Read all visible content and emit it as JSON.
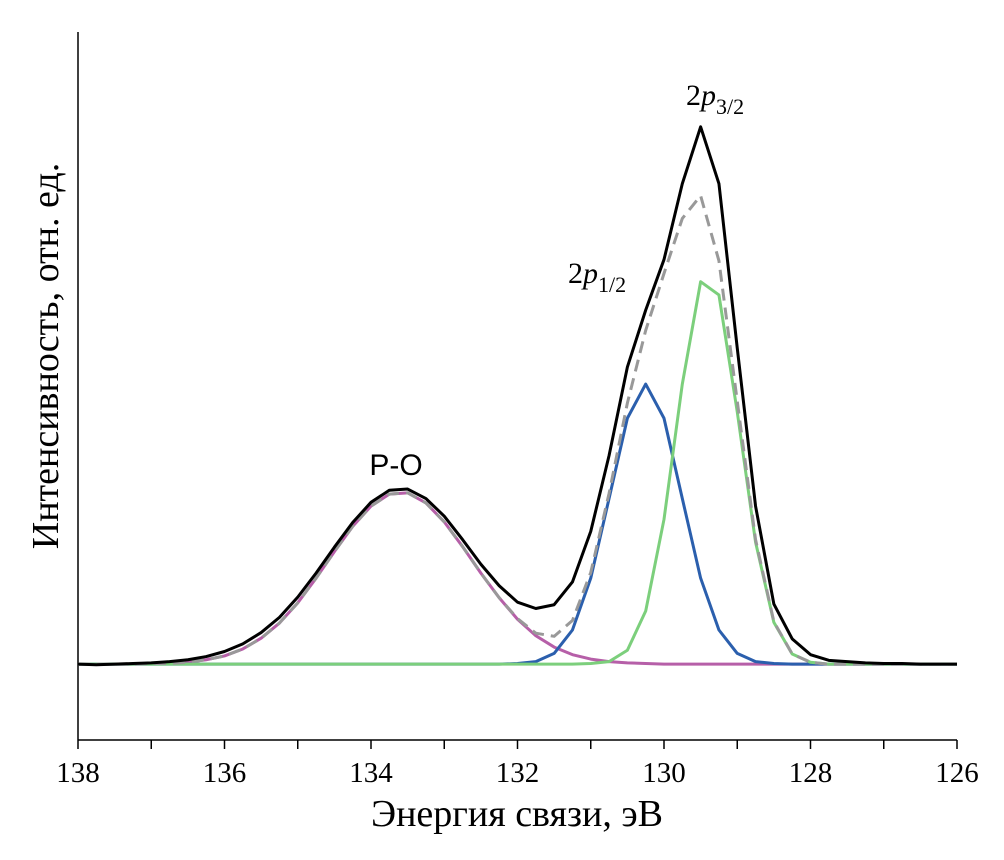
{
  "chart_data": {
    "type": "line",
    "xlabel": "Энергия связи, эВ",
    "ylabel": "Интенсивность, отн. ед.",
    "annotations": [
      {
        "text": "P-O"
      },
      {
        "text": "2",
        "italic": "p",
        "sub": "1/2"
      },
      {
        "text": "2",
        "italic": "p",
        "sub": "3/2"
      }
    ],
    "x": [
      138,
      137.75,
      137.5,
      137.25,
      137,
      136.75,
      136.5,
      136.25,
      136,
      135.75,
      135.5,
      135.25,
      135,
      134.75,
      134.5,
      134.25,
      134,
      133.75,
      133.5,
      133.25,
      133,
      132.75,
      132.5,
      132.25,
      132,
      131.75,
      131.5,
      131.25,
      131,
      130.75,
      130.5,
      130.25,
      130,
      129.75,
      129.5,
      129.25,
      129,
      128.75,
      128.5,
      128.25,
      128,
      127.75,
      127.5,
      127.25,
      127,
      126.75,
      126.5,
      126.25,
      126
    ],
    "series": [
      {
        "color": "#b65fa8",
        "style": "solid",
        "values": [
          0,
          0,
          0,
          0,
          0.001,
          0.001,
          0.003,
          0.007,
          0.013,
          0.024,
          0.041,
          0.065,
          0.097,
          0.136,
          0.178,
          0.218,
          0.25,
          0.269,
          0.271,
          0.255,
          0.225,
          0.186,
          0.144,
          0.105,
          0.071,
          0.045,
          0.027,
          0.015,
          0.008,
          0.004,
          0.002,
          0.001,
          0,
          0,
          0,
          0,
          0,
          0,
          0,
          0,
          0,
          0,
          0,
          0,
          0,
          0,
          0,
          0,
          0
        ]
      },
      {
        "color": "#2b5fad",
        "style": "solid",
        "values": [
          0,
          0,
          0,
          0,
          0,
          0,
          0,
          0,
          0,
          0,
          0,
          0,
          0,
          0,
          0,
          0,
          0,
          0,
          0,
          0,
          0,
          0,
          0,
          0,
          0.001,
          0.004,
          0.017,
          0.054,
          0.136,
          0.262,
          0.389,
          0.443,
          0.389,
          0.262,
          0.136,
          0.054,
          0.017,
          0.004,
          0.001,
          0,
          0,
          0,
          0,
          0,
          0,
          0,
          0,
          0,
          0
        ]
      },
      {
        "color": "#7ccf7c",
        "style": "solid",
        "values": [
          0,
          0,
          0,
          0,
          0,
          0,
          0,
          0,
          0,
          0,
          0,
          0,
          0,
          0,
          0,
          0,
          0,
          0,
          0,
          0,
          0,
          0,
          0,
          0,
          0,
          0,
          0,
          0,
          0.001,
          0.004,
          0.022,
          0.084,
          0.229,
          0.443,
          0.605,
          0.584,
          0.399,
          0.193,
          0.066,
          0.016,
          0.003,
          0,
          0,
          0,
          0,
          0,
          0,
          0,
          0
        ]
      },
      {
        "color": "#999999",
        "style": "dashed",
        "values": [
          0,
          0,
          0,
          0,
          0.001,
          0.001,
          0.003,
          0.007,
          0.013,
          0.024,
          0.041,
          0.065,
          0.097,
          0.136,
          0.178,
          0.218,
          0.25,
          0.269,
          0.271,
          0.255,
          0.225,
          0.186,
          0.144,
          0.105,
          0.072,
          0.049,
          0.044,
          0.069,
          0.145,
          0.27,
          0.413,
          0.528,
          0.618,
          0.705,
          0.741,
          0.638,
          0.416,
          0.197,
          0.067,
          0.016,
          0.003,
          0,
          0,
          0,
          0,
          0,
          0,
          0,
          0
        ]
      },
      {
        "color": "#000000",
        "style": "solid",
        "values": [
          0,
          -0.001,
          0,
          0.001,
          0.002,
          0.004,
          0.007,
          0.012,
          0.02,
          0.032,
          0.05,
          0.074,
          0.106,
          0.144,
          0.185,
          0.224,
          0.256,
          0.275,
          0.277,
          0.262,
          0.234,
          0.197,
          0.158,
          0.124,
          0.098,
          0.088,
          0.094,
          0.13,
          0.21,
          0.33,
          0.47,
          0.56,
          0.64,
          0.76,
          0.85,
          0.76,
          0.5,
          0.25,
          0.095,
          0.04,
          0.015,
          0.006,
          0.004,
          0.002,
          0.001,
          0.001,
          0,
          0,
          0
        ]
      }
    ],
    "xlim": [
      138,
      126
    ],
    "xticks": [
      138,
      136,
      134,
      132,
      130,
      128,
      126
    ],
    "xminor_ticks": [
      137,
      135,
      133,
      131,
      129,
      127
    ],
    "ylim": [
      -0.12,
      1.0
    ]
  }
}
